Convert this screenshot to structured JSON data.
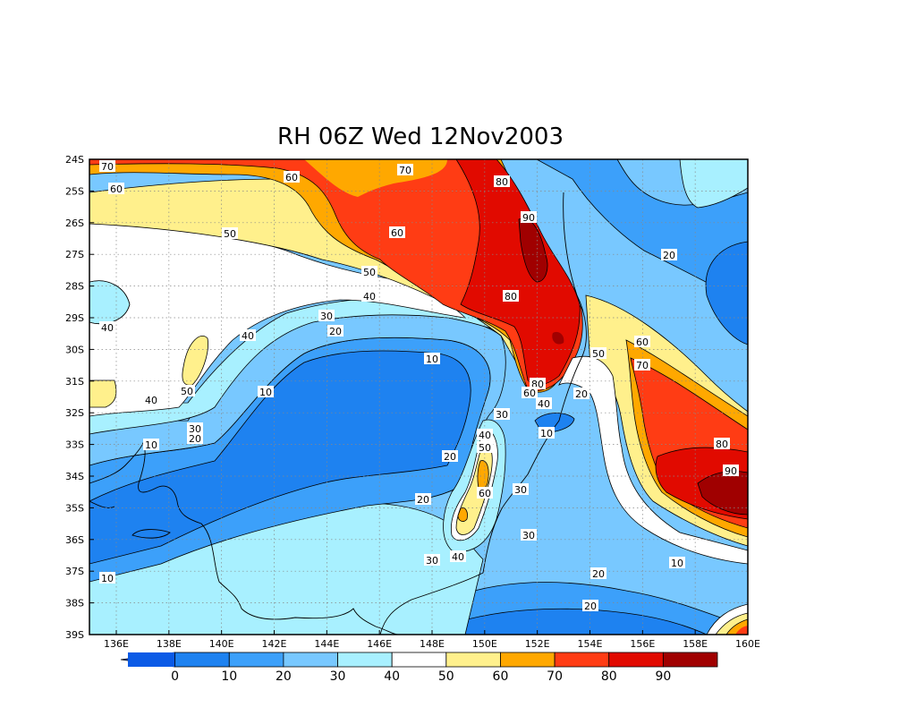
{
  "title": "RH 06Z Wed 12Nov2003",
  "lat_labels": [
    "24S",
    "25S",
    "26S",
    "27S",
    "28S",
    "29S",
    "30S",
    "31S",
    "32S",
    "33S",
    "34S",
    "35S",
    "36S",
    "37S",
    "38S",
    "39S"
  ],
  "lon_labels": [
    "136E",
    "138E",
    "140E",
    "142E",
    "144E",
    "146E",
    "148E",
    "150E",
    "152E",
    "154E",
    "156E",
    "158E",
    "160E"
  ],
  "colorbar": {
    "labels": [
      "0",
      "10",
      "20",
      "30",
      "40",
      "50",
      "60",
      "70",
      "80",
      "90"
    ],
    "colors": [
      "#0a5ae6",
      "#1e82f0",
      "#3ca0fa",
      "#78c8ff",
      "#a8f0ff",
      "#ffffff",
      "#fff08c",
      "#ffa800",
      "#ff3c14",
      "#e10a00",
      "#a00000"
    ]
  },
  "contour_labels": [
    {
      "id": "c1",
      "text": "70"
    },
    {
      "id": "c2",
      "text": "60"
    },
    {
      "id": "c3",
      "text": "60"
    },
    {
      "id": "c4",
      "text": "70"
    },
    {
      "id": "c5",
      "text": "80"
    },
    {
      "id": "c6",
      "text": "90"
    },
    {
      "id": "c7",
      "text": "50"
    },
    {
      "id": "c8",
      "text": "60"
    },
    {
      "id": "c9",
      "text": "50"
    },
    {
      "id": "c10",
      "text": "40"
    },
    {
      "id": "c11",
      "text": "80"
    },
    {
      "id": "c12",
      "text": "20"
    },
    {
      "id": "c13",
      "text": "40"
    },
    {
      "id": "c14",
      "text": "30"
    },
    {
      "id": "c15",
      "text": "20"
    },
    {
      "id": "c16",
      "text": "40"
    },
    {
      "id": "c17",
      "text": "10"
    },
    {
      "id": "c18",
      "text": "50"
    },
    {
      "id": "c19",
      "text": "60"
    },
    {
      "id": "c20",
      "text": "70"
    },
    {
      "id": "c21",
      "text": "50"
    },
    {
      "id": "c22",
      "text": "10"
    },
    {
      "id": "c23",
      "text": "80"
    },
    {
      "id": "c24",
      "text": "60"
    },
    {
      "id": "c25",
      "text": "40"
    },
    {
      "id": "c26",
      "text": "20"
    },
    {
      "id": "c27",
      "text": "40"
    },
    {
      "id": "c28",
      "text": "30"
    },
    {
      "id": "c29",
      "text": "30"
    },
    {
      "id": "c30",
      "text": "20"
    },
    {
      "id": "c31",
      "text": "10"
    },
    {
      "id": "c32",
      "text": "40"
    },
    {
      "id": "c33",
      "text": "50"
    },
    {
      "id": "c34",
      "text": "10"
    },
    {
      "id": "c35",
      "text": "80"
    },
    {
      "id": "c36",
      "text": "90"
    },
    {
      "id": "c37",
      "text": "60"
    },
    {
      "id": "c38",
      "text": "20"
    },
    {
      "id": "c39",
      "text": "20"
    },
    {
      "id": "c40",
      "text": "30"
    },
    {
      "id": "c41",
      "text": "40"
    },
    {
      "id": "c42",
      "text": "30"
    },
    {
      "id": "c43",
      "text": "30"
    },
    {
      "id": "c44",
      "text": "20"
    },
    {
      "id": "c45",
      "text": "10"
    },
    {
      "id": "c46",
      "text": "10"
    },
    {
      "id": "c47",
      "text": "20"
    }
  ]
}
